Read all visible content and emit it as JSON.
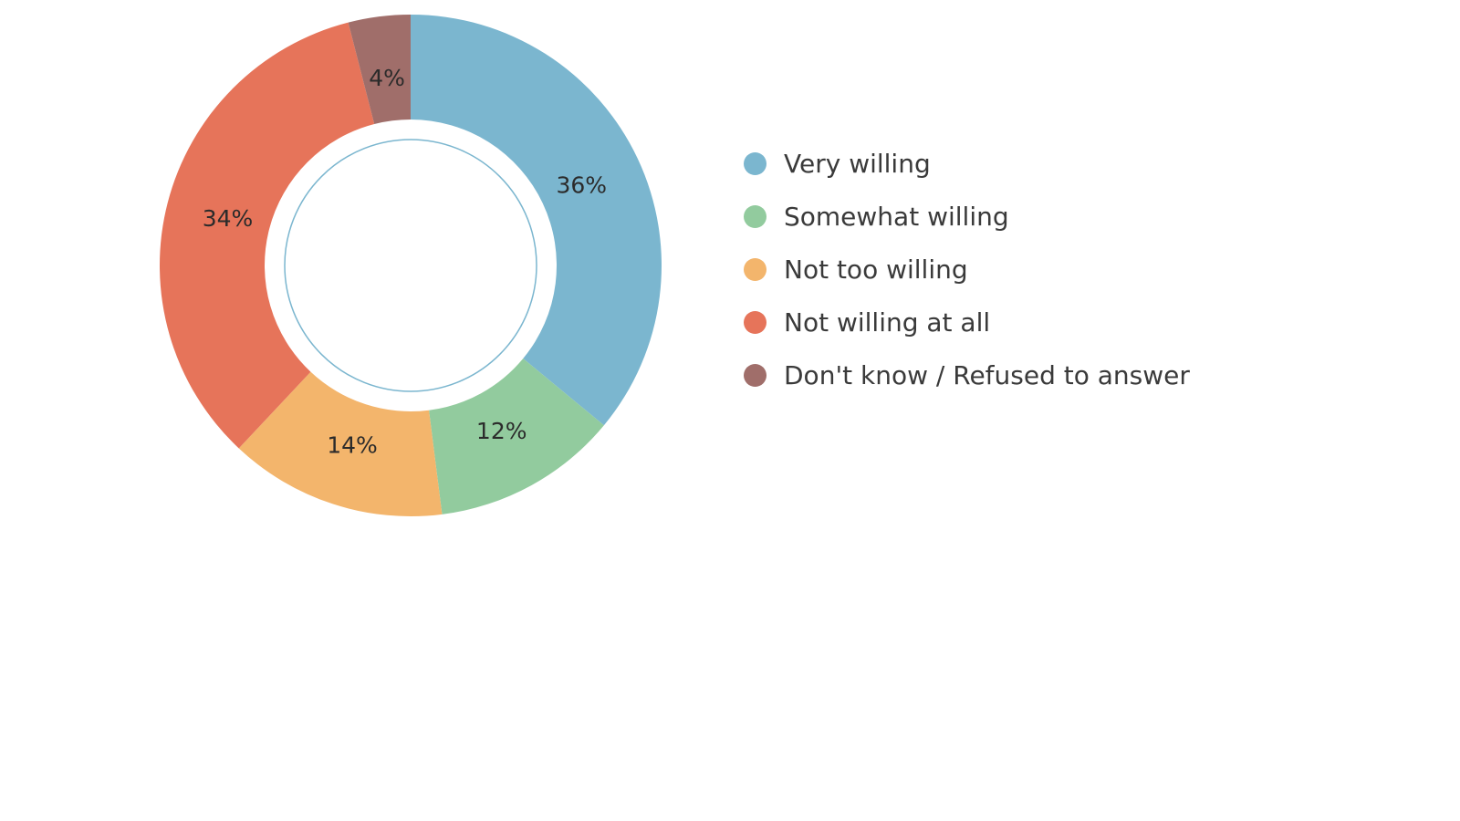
{
  "chart_data": {
    "type": "pie",
    "variant": "donut",
    "title": "",
    "legend_position": "right",
    "slices": [
      {
        "label": "Very willing",
        "value": 36,
        "display": "36%",
        "color": "#7bb6cf"
      },
      {
        "label": "Somewhat willing",
        "value": 12,
        "display": "12%",
        "color": "#92cb9e"
      },
      {
        "label": "Not too willing",
        "value": 14,
        "display": "14%",
        "color": "#f3b56c"
      },
      {
        "label": "Not willing at all",
        "value": 34,
        "display": "34%",
        "color": "#e6745a"
      },
      {
        "label": "Don't know / Refused to answer",
        "value": 4,
        "display": "4%",
        "color": "#a06e6a"
      }
    ]
  }
}
